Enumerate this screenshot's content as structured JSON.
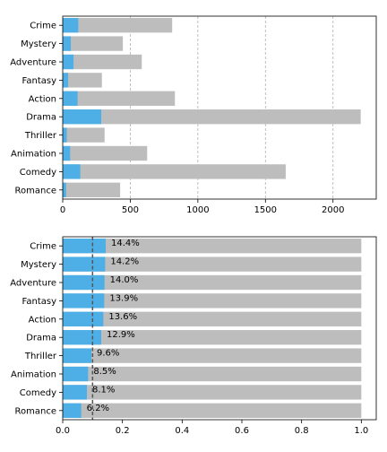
{
  "chart_data": [
    {
      "type": "bar",
      "orientation": "horizontal",
      "stacked": false,
      "categories": [
        "Crime",
        "Mystery",
        "Adventure",
        "Fantasy",
        "Action",
        "Drama",
        "Thriller",
        "Animation",
        "Comedy",
        "Romance"
      ],
      "series": [
        {
          "values": [
            810,
            445,
            585,
            290,
            830,
            2205,
            310,
            625,
            1650,
            425
          ],
          "color": "#bdbdbd"
        },
        {
          "values": [
            115,
            60,
            80,
            40,
            110,
            285,
            30,
            55,
            130,
            25
          ],
          "color": "#4dafe6"
        }
      ],
      "xlim": [
        0,
        2320
      ],
      "xticks": [
        0,
        500,
        1000,
        1500,
        2000
      ],
      "grid": "x-dashed"
    },
    {
      "type": "bar",
      "orientation": "horizontal",
      "stacked": false,
      "categories": [
        "Crime",
        "Mystery",
        "Adventure",
        "Fantasy",
        "Action",
        "Drama",
        "Thriller",
        "Animation",
        "Comedy",
        "Romance"
      ],
      "series": [
        {
          "values": [
            1,
            1,
            1,
            1,
            1,
            1,
            1,
            1,
            1,
            1
          ],
          "color": "#bdbdbd"
        },
        {
          "values": [
            0.144,
            0.142,
            0.14,
            0.139,
            0.136,
            0.129,
            0.096,
            0.085,
            0.081,
            0.062
          ],
          "color": "#4dafe6"
        }
      ],
      "data_labels": [
        "14.4%",
        "14.2%",
        "14.0%",
        "13.9%",
        "13.6%",
        "12.9%",
        "9.6%",
        "8.5%",
        "8.1%",
        "6.2%"
      ],
      "xlim": [
        0,
        1.05
      ],
      "xticks": [
        0.0,
        0.2,
        0.4,
        0.6,
        0.8,
        1.0
      ],
      "tick_labels": [
        "0.0",
        "0.2",
        "0.4",
        "0.6",
        "0.8",
        "1.0"
      ],
      "reference_line": {
        "x": 0.1,
        "style": "dashed",
        "color": "#555555"
      }
    }
  ]
}
